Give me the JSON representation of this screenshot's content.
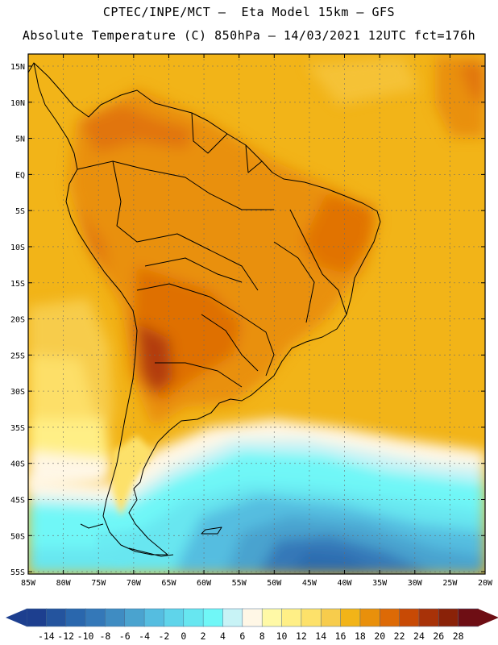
{
  "header": {
    "line1": "CPTEC/INPE/MCT –  Eta Model 15km – GFS",
    "line2": "Absolute Temperature (C) 850hPa – 14/03/2021 12UTC fct=176h"
  },
  "map": {
    "lat_labels": [
      "15N",
      "10N",
      "5N",
      "EQ",
      "5S",
      "10S",
      "15S",
      "20S",
      "25S",
      "30S",
      "35S",
      "40S",
      "45S",
      "50S",
      "55S"
    ],
    "lon_labels": [
      "85W",
      "80W",
      "75W",
      "70W",
      "65W",
      "60W",
      "55W",
      "50W",
      "45W",
      "40W",
      "35W",
      "30W",
      "25W",
      "20W"
    ],
    "lat_range": [
      15,
      -57
    ],
    "lon_range": [
      -85,
      -20
    ]
  },
  "colorbar": {
    "values": [
      -14,
      -12,
      -10,
      -8,
      -6,
      -4,
      -2,
      0,
      2,
      4,
      6,
      8,
      10,
      12,
      14,
      16,
      18,
      20,
      22,
      24,
      26,
      28
    ],
    "colors": [
      "#1d3f8f",
      "#24549e",
      "#2a67ad",
      "#3478b8",
      "#3f8cc2",
      "#4aa3cf",
      "#55bde0",
      "#5fd4ea",
      "#67e6f0",
      "#70f7f7",
      "#c8f3f6",
      "#fff7e6",
      "#fff9a6",
      "#ffef86",
      "#fde16a",
      "#f7cc4c",
      "#f2b418",
      "#e9900b",
      "#dd6a06",
      "#c84a05",
      "#a83208",
      "#8a2208",
      "#6e0e14"
    ]
  }
}
